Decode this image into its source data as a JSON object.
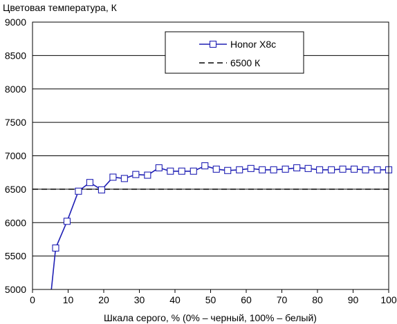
{
  "chart_data": {
    "type": "line",
    "title": "",
    "ylabel": "Цветовая температура, К",
    "xlabel": "Шкала серого, % (0% – черный, 100% – белый)",
    "xlim": [
      0,
      100
    ],
    "ylim": [
      5000,
      9000
    ],
    "xticks": [
      0,
      10,
      20,
      30,
      40,
      50,
      60,
      70,
      80,
      90,
      100
    ],
    "yticks": [
      5000,
      5500,
      6000,
      6500,
      7000,
      7500,
      8000,
      8500,
      9000
    ],
    "grid": "horizontal",
    "legend_position": "top-right",
    "series": [
      {
        "name": "Honor X8c",
        "color": "#1f1fb4",
        "marker": "square",
        "x": [
          5.2,
          6.5,
          9.7,
          12.9,
          16.1,
          19.4,
          22.6,
          25.8,
          29.0,
          32.3,
          35.5,
          38.7,
          41.9,
          45.2,
          48.4,
          51.6,
          54.8,
          58.1,
          61.3,
          64.5,
          67.7,
          71.0,
          74.2,
          77.4,
          80.6,
          83.9,
          87.1,
          90.3,
          93.5,
          96.8,
          100.0
        ],
        "y": [
          4950,
          5620,
          6020,
          6470,
          6600,
          6490,
          6680,
          6660,
          6720,
          6710,
          6820,
          6770,
          6770,
          6770,
          6850,
          6800,
          6780,
          6790,
          6810,
          6790,
          6790,
          6800,
          6820,
          6810,
          6790,
          6790,
          6800,
          6800,
          6790,
          6790,
          6790
        ]
      },
      {
        "name": "6500 К",
        "color": "#000000",
        "style": "dashed",
        "x": [
          0,
          100
        ],
        "y": [
          6500,
          6500
        ]
      }
    ]
  }
}
